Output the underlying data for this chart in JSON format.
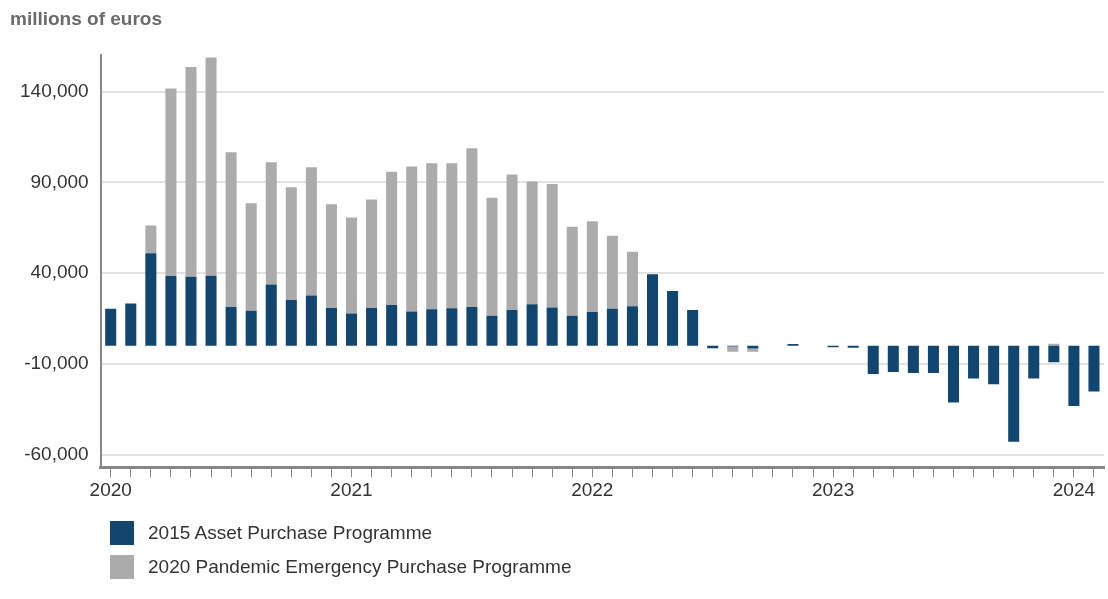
{
  "chart_data": {
    "type": "bar",
    "ylabel": "millions of euros",
    "stacked": true,
    "categories": [
      "2020",
      null,
      null,
      null,
      null,
      null,
      null,
      null,
      null,
      null,
      null,
      null,
      "2021",
      null,
      null,
      null,
      null,
      null,
      null,
      null,
      null,
      null,
      null,
      null,
      "2022",
      null,
      null,
      null,
      null,
      null,
      null,
      null,
      null,
      null,
      null,
      null,
      "2023",
      null,
      null,
      null,
      null,
      null,
      null,
      null,
      null,
      null,
      null,
      null,
      "2024",
      null
    ],
    "series": [
      {
        "name": "2015 Asset Purchase Programme",
        "color": "#12466e",
        "values": [
          20300,
          23300,
          50900,
          38400,
          38000,
          38500,
          21300,
          19200,
          33700,
          25100,
          27600,
          20800,
          17700,
          20800,
          22400,
          18800,
          20100,
          20600,
          21300,
          16500,
          19700,
          22800,
          21000,
          16500,
          18600,
          20400,
          21700,
          39400,
          30100,
          19700,
          -1400,
          -500,
          -1600,
          null,
          900,
          0,
          -900,
          -1200,
          -15600,
          -14500,
          -15100,
          -15100,
          -31400,
          -18100,
          -21300,
          -53000,
          -18100,
          -9100,
          -33300,
          -25300
        ]
      },
      {
        "name": "2020 Pandemic Emergency Purchase Programme",
        "color": "#ababab",
        "values": [
          0,
          0,
          15400,
          103300,
          115600,
          120300,
          85300,
          59300,
          67400,
          62200,
          70800,
          57100,
          52900,
          59800,
          73500,
          79900,
          80400,
          79900,
          87500,
          65000,
          74700,
          67700,
          68100,
          49100,
          50000,
          40200,
          30100,
          0,
          0,
          0,
          null,
          -2900,
          -1800,
          0,
          0,
          null,
          0,
          0,
          0,
          0,
          0,
          0,
          0,
          0,
          0,
          0,
          null,
          1100,
          0,
          0
        ]
      }
    ],
    "ylim": [
      -67000,
      160000
    ],
    "yticks": [
      {
        "value": -60000,
        "label": "-60,000"
      },
      {
        "value": -10000,
        "label": "-10,000"
      },
      {
        "value": 40000,
        "label": "40,000"
      },
      {
        "value": 90000,
        "label": "90,000"
      },
      {
        "value": 140000,
        "label": "140,000"
      }
    ],
    "grid": "y",
    "legend": "bottom"
  }
}
